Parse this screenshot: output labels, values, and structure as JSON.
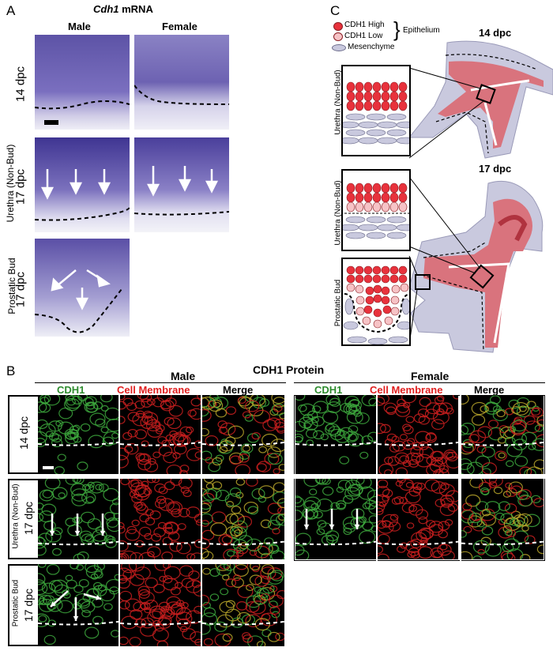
{
  "panel_a": {
    "letter": "A",
    "title_gene": "Cdh1",
    "title_rest": " mRNA",
    "col_male": "Male",
    "col_female": "Female",
    "row_14": "14 dpc",
    "row_17_nonbud_region": "Urethra (Non-Bud)",
    "row_17_nonbud_stage": "17 dpc",
    "row_17_bud_region": "Prostatic Bud",
    "row_17_bud_stage": "17 dpc"
  },
  "panel_b": {
    "letter": "B",
    "title": "CDH1 Protein",
    "male": "Male",
    "female": "Female",
    "ch_cdh1": "CDH1",
    "ch_membrane": "Cell Membrane",
    "ch_merge": "Merge",
    "row_14": "14 dpc",
    "row_nonbud_region": "Urethra (Non-Bud)",
    "row_nonbud_stage": "17 dpc",
    "row_bud_region": "Prostatic Bud",
    "row_bud_stage": "17 dpc",
    "colors": {
      "cdh1": "#2e8b2e",
      "membrane": "#e02020"
    }
  },
  "panel_c": {
    "letter": "C",
    "legend_high": "CDH1 High",
    "legend_low": "CDH1 Low",
    "legend_group": "Epithelium",
    "legend_mes": "Mesenchyme",
    "stage_14": "14 dpc",
    "stage_17": "17 dpc",
    "inset_nonbud_14": "Urethra (Non-Bud)",
    "inset_nonbud_17": "Urethra (Non-Bud)",
    "inset_bud_17": "Prostatic Bud",
    "colors": {
      "high": "#e8323c",
      "low": "#f6c3c6",
      "mesenchyme": "#c9c9de",
      "urethra": "#d9737d"
    }
  }
}
